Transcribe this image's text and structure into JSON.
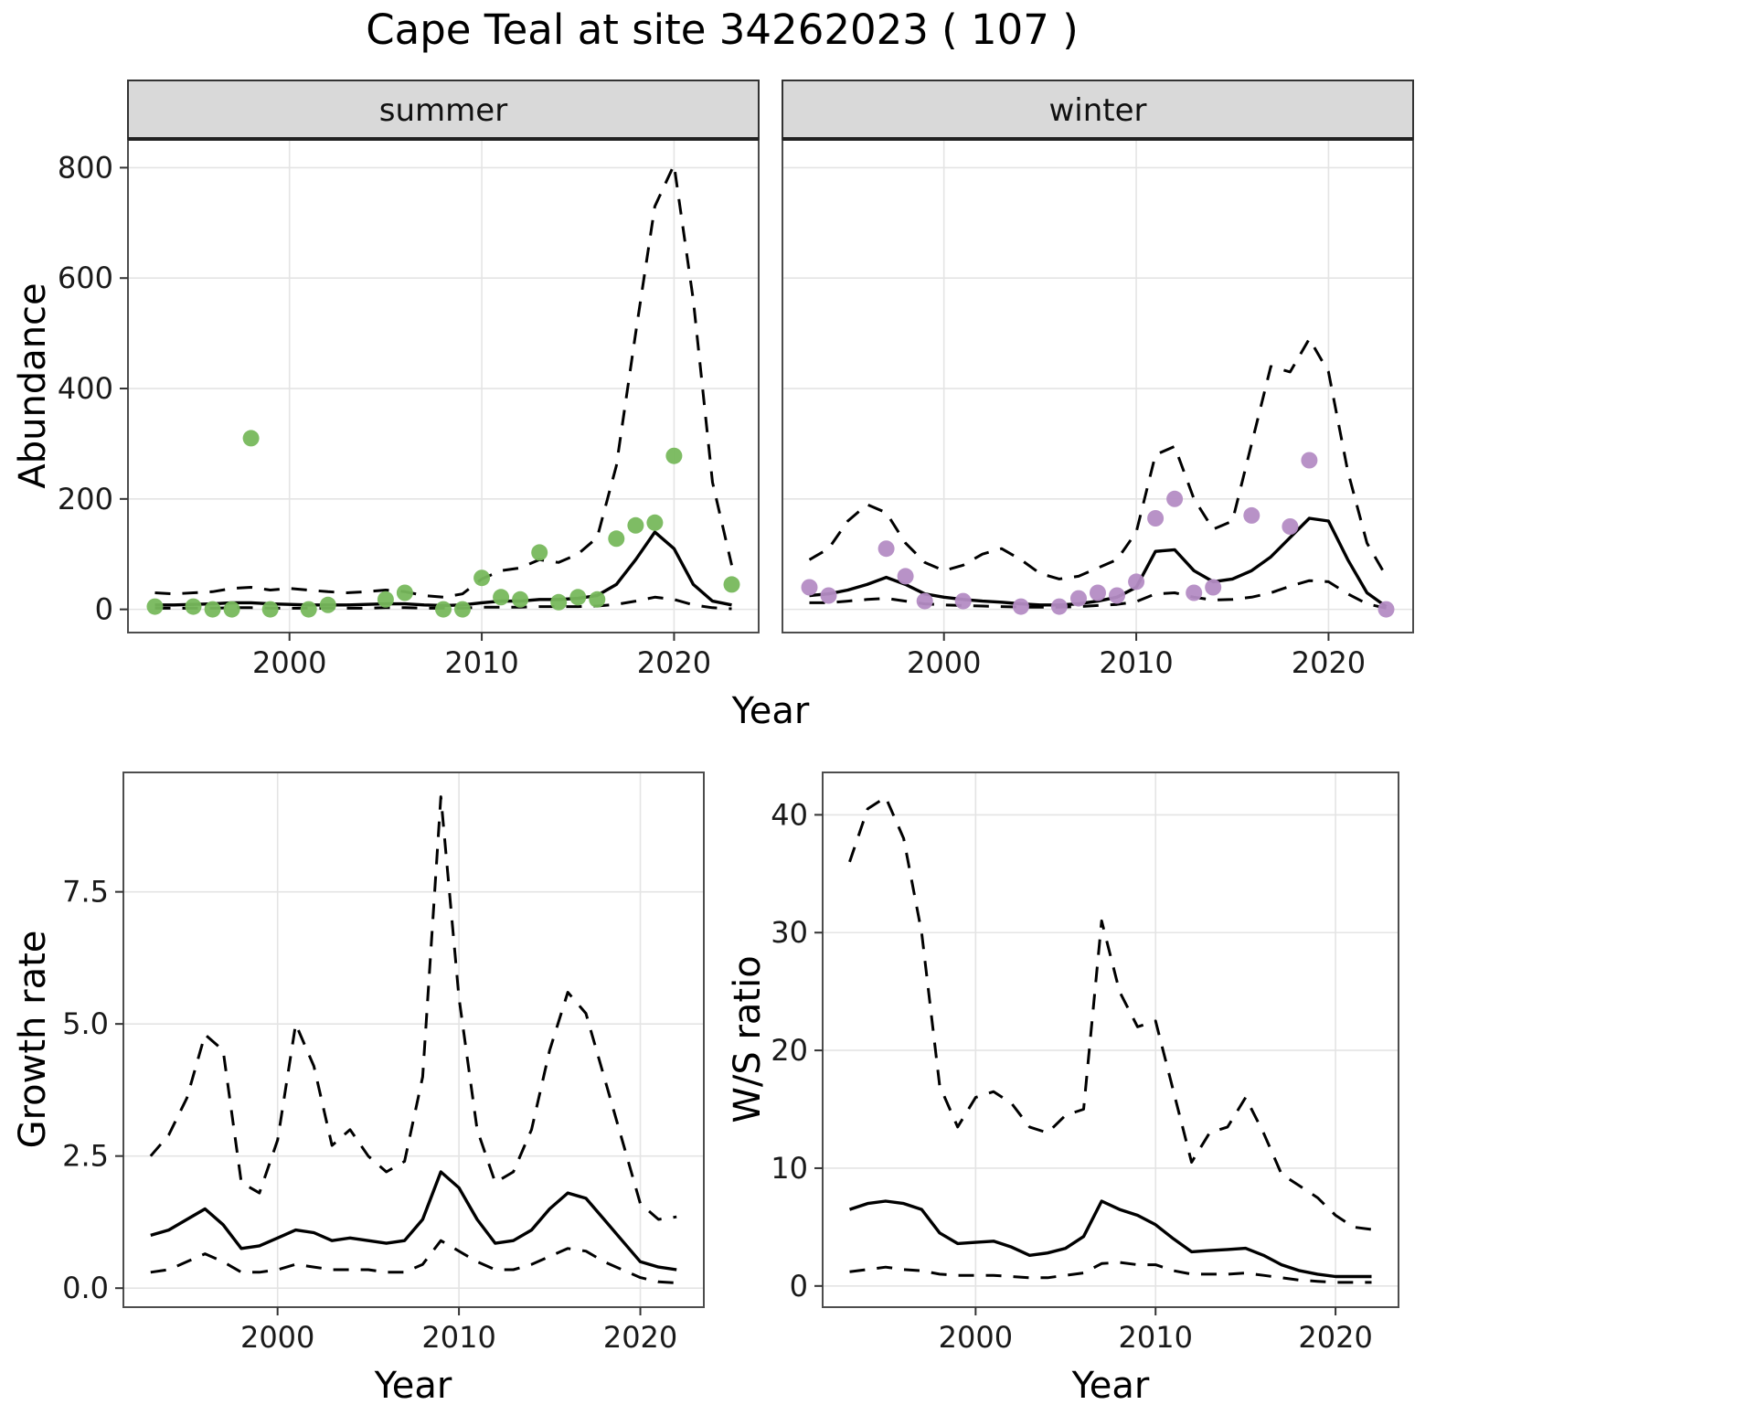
{
  "title": "Cape Teal at site 34262023 ( 107 )",
  "labels": {
    "abundance": "Abundance",
    "year_top": "Year",
    "growth": "Growth rate",
    "ws": "W/S ratio",
    "year_bottom_left": "Year",
    "year_bottom_right": "Year"
  },
  "style": {
    "point_green": "#77b85c",
    "point_purple": "#b48cc4",
    "line_color": "#000000",
    "grid_color": "#e4e4e4",
    "panel_border": "#4d4d4d",
    "strip_fill": "#d9d9d9",
    "strip_border": "#333333",
    "text_color": "#1a1a1a"
  },
  "chart_data": [
    {
      "id": "abundance-summer",
      "type": "line",
      "facet_label": "summer",
      "xlabel": "Year",
      "ylabel": "Abundance",
      "xlim": [
        1991.6,
        2024.4
      ],
      "ylim": [
        -42,
        852
      ],
      "xticks": [
        2000,
        2010,
        2020
      ],
      "xtick_labels": [
        "2000",
        "2010",
        "2020"
      ],
      "yticks": [
        0,
        200,
        400,
        600,
        800
      ],
      "ytick_labels": [
        "0",
        "200",
        "400",
        "600",
        "800"
      ],
      "points": {
        "name": "observed-counts-summer",
        "color_key": "point_green",
        "x": [
          1993,
          1995,
          1996,
          1997,
          1998,
          1999,
          2001,
          2002,
          2005,
          2006,
          2008,
          2009,
          2010,
          2011,
          2012,
          2013,
          2014,
          2015,
          2016,
          2017,
          2018,
          2019,
          2020,
          2023
        ],
        "y": [
          5,
          5,
          0,
          0,
          310,
          0,
          0,
          8,
          18,
          30,
          0,
          0,
          57,
          22,
          18,
          103,
          13,
          22,
          18,
          128,
          152,
          157,
          278,
          45
        ]
      },
      "series": [
        {
          "name": "model-fit",
          "style": "solid",
          "x": [
            1993,
            1994,
            1995,
            1996,
            1997,
            1998,
            1999,
            2000,
            2001,
            2002,
            2003,
            2004,
            2005,
            2006,
            2007,
            2008,
            2009,
            2010,
            2011,
            2012,
            2013,
            2014,
            2015,
            2016,
            2017,
            2018,
            2019,
            2020,
            2021,
            2022,
            2023
          ],
          "y": [
            8,
            8,
            9,
            10,
            12,
            12,
            10,
            9,
            8,
            8,
            8,
            9,
            10,
            10,
            8,
            7,
            8,
            12,
            15,
            15,
            18,
            18,
            20,
            25,
            45,
            90,
            140,
            110,
            45,
            15,
            8
          ]
        },
        {
          "name": "upper-ci",
          "style": "dashed",
          "x": [
            1993,
            1994,
            1995,
            1996,
            1997,
            1998,
            1999,
            2000,
            2001,
            2002,
            2003,
            2004,
            2005,
            2006,
            2007,
            2008,
            2009,
            2010,
            2011,
            2012,
            2013,
            2014,
            2015,
            2016,
            2017,
            2018,
            2019,
            2020,
            2021,
            2022,
            2023
          ],
          "y": [
            30,
            28,
            30,
            32,
            38,
            40,
            35,
            38,
            35,
            32,
            30,
            32,
            35,
            32,
            25,
            22,
            28,
            55,
            70,
            75,
            90,
            85,
            100,
            130,
            260,
            500,
            730,
            805,
            560,
            230,
            80
          ]
        },
        {
          "name": "lower-ci",
          "style": "dashed",
          "x": [
            1993,
            1994,
            1995,
            1996,
            1997,
            1998,
            1999,
            2000,
            2001,
            2002,
            2003,
            2004,
            2005,
            2006,
            2007,
            2008,
            2009,
            2010,
            2011,
            2012,
            2013,
            2014,
            2015,
            2016,
            2017,
            2018,
            2019,
            2020,
            2021,
            2022,
            2023
          ],
          "y": [
            2,
            2,
            2,
            2,
            3,
            3,
            2,
            2,
            2,
            2,
            2,
            2,
            3,
            3,
            2,
            2,
            2,
            4,
            4,
            4,
            5,
            5,
            5,
            6,
            9,
            15,
            22,
            18,
            8,
            3,
            1
          ]
        }
      ]
    },
    {
      "id": "abundance-winter",
      "type": "line",
      "facet_label": "winter",
      "xlabel": "Year",
      "ylabel": "Abundance",
      "xlim": [
        1991.6,
        2024.4
      ],
      "ylim": [
        -42,
        852
      ],
      "xticks": [
        2000,
        2010,
        2020
      ],
      "xtick_labels": [
        "2000",
        "2010",
        "2020"
      ],
      "yticks": [
        0,
        200,
        400,
        600,
        800
      ],
      "ytick_labels": [
        "0",
        "200",
        "400",
        "600",
        "800"
      ],
      "points": {
        "name": "observed-counts-winter",
        "color_key": "point_purple",
        "x": [
          1993,
          1994,
          1997,
          1998,
          1999,
          2001,
          2004,
          2006,
          2007,
          2008,
          2009,
          2010,
          2011,
          2012,
          2013,
          2014,
          2016,
          2018,
          2019,
          2023
        ],
        "y": [
          40,
          25,
          110,
          60,
          15,
          15,
          5,
          5,
          20,
          30,
          25,
          50,
          165,
          200,
          30,
          40,
          170,
          150,
          270,
          0
        ]
      },
      "series": [
        {
          "name": "model-fit",
          "style": "solid",
          "x": [
            1993,
            1994,
            1995,
            1996,
            1997,
            1998,
            1999,
            2000,
            2001,
            2002,
            2003,
            2004,
            2005,
            2006,
            2007,
            2008,
            2009,
            2010,
            2011,
            2012,
            2013,
            2014,
            2015,
            2016,
            2017,
            2018,
            2019,
            2020,
            2021,
            2022,
            2023
          ],
          "y": [
            25,
            28,
            35,
            45,
            58,
            45,
            28,
            22,
            18,
            15,
            13,
            10,
            8,
            8,
            10,
            15,
            22,
            40,
            105,
            108,
            70,
            50,
            55,
            70,
            95,
            130,
            165,
            160,
            90,
            30,
            5
          ]
        },
        {
          "name": "upper-ci",
          "style": "dashed",
          "x": [
            1993,
            1994,
            1995,
            1996,
            1997,
            1998,
            1999,
            2000,
            2001,
            2002,
            2003,
            2004,
            2005,
            2006,
            2007,
            2008,
            2009,
            2010,
            2011,
            2012,
            2013,
            2014,
            2015,
            2016,
            2017,
            2018,
            2019,
            2020,
            2021,
            2022,
            2023
          ],
          "y": [
            90,
            110,
            160,
            190,
            175,
            120,
            85,
            70,
            80,
            100,
            110,
            90,
            65,
            55,
            60,
            75,
            90,
            140,
            280,
            295,
            200,
            145,
            160,
            300,
            440,
            430,
            490,
            430,
            250,
            120,
            60
          ]
        },
        {
          "name": "lower-ci",
          "style": "dashed",
          "x": [
            1993,
            1994,
            1995,
            1996,
            1997,
            1998,
            1999,
            2000,
            2001,
            2002,
            2003,
            2004,
            2005,
            2006,
            2007,
            2008,
            2009,
            2010,
            2011,
            2012,
            2013,
            2014,
            2015,
            2016,
            2017,
            2018,
            2019,
            2020,
            2021,
            2022,
            2023
          ],
          "y": [
            12,
            12,
            15,
            18,
            20,
            15,
            10,
            8,
            7,
            6,
            5,
            4,
            4,
            4,
            5,
            7,
            9,
            14,
            28,
            30,
            22,
            17,
            18,
            22,
            30,
            42,
            52,
            50,
            28,
            10,
            2
          ]
        }
      ]
    },
    {
      "id": "growth-rate",
      "type": "line",
      "facet_label": null,
      "xlabel": "Year",
      "ylabel": "Growth rate",
      "xlim": [
        1991.5,
        2023.5
      ],
      "ylim": [
        -0.36,
        9.76
      ],
      "xticks": [
        2000,
        2010,
        2020
      ],
      "xtick_labels": [
        "2000",
        "2010",
        "2020"
      ],
      "yticks": [
        0,
        2.5,
        5,
        7.5
      ],
      "ytick_labels": [
        "0.0",
        "2.5",
        "5.0",
        "7.5"
      ],
      "points": null,
      "series": [
        {
          "name": "model-fit",
          "style": "solid",
          "x": [
            1993,
            1994,
            1995,
            1996,
            1997,
            1998,
            1999,
            2000,
            2001,
            2002,
            2003,
            2004,
            2005,
            2006,
            2007,
            2008,
            2009,
            2010,
            2011,
            2012,
            2013,
            2014,
            2015,
            2016,
            2017,
            2018,
            2019,
            2020,
            2021,
            2022
          ],
          "y": [
            1.0,
            1.1,
            1.3,
            1.5,
            1.2,
            0.75,
            0.8,
            0.95,
            1.1,
            1.05,
            0.9,
            0.95,
            0.9,
            0.85,
            0.9,
            1.3,
            2.2,
            1.9,
            1.3,
            0.85,
            0.9,
            1.1,
            1.5,
            1.8,
            1.7,
            1.3,
            0.9,
            0.5,
            0.4,
            0.35
          ]
        },
        {
          "name": "upper-ci",
          "style": "dashed",
          "x": [
            1993,
            1994,
            1995,
            1996,
            1997,
            1998,
            1999,
            2000,
            2001,
            2002,
            2003,
            2004,
            2005,
            2006,
            2007,
            2008,
            2009,
            2010,
            2011,
            2012,
            2013,
            2014,
            2015,
            2016,
            2017,
            2018,
            2019,
            2020,
            2021,
            2022
          ],
          "y": [
            2.5,
            2.9,
            3.6,
            4.8,
            4.5,
            2.0,
            1.8,
            2.8,
            5.0,
            4.2,
            2.7,
            3.0,
            2.5,
            2.2,
            2.4,
            4.0,
            9.3,
            5.5,
            3.0,
            2.0,
            2.2,
            3.0,
            4.5,
            5.6,
            5.2,
            4.0,
            2.8,
            1.6,
            1.3,
            1.35
          ]
        },
        {
          "name": "lower-ci",
          "style": "dashed",
          "x": [
            1993,
            1994,
            1995,
            1996,
            1997,
            1998,
            1999,
            2000,
            2001,
            2002,
            2003,
            2004,
            2005,
            2006,
            2007,
            2008,
            2009,
            2010,
            2011,
            2012,
            2013,
            2014,
            2015,
            2016,
            2017,
            2018,
            2019,
            2020,
            2021,
            2022
          ],
          "y": [
            0.3,
            0.35,
            0.5,
            0.65,
            0.5,
            0.3,
            0.3,
            0.35,
            0.45,
            0.4,
            0.35,
            0.35,
            0.35,
            0.3,
            0.3,
            0.45,
            0.9,
            0.7,
            0.5,
            0.35,
            0.35,
            0.45,
            0.6,
            0.75,
            0.7,
            0.5,
            0.35,
            0.2,
            0.12,
            0.1
          ]
        }
      ]
    },
    {
      "id": "ws-ratio",
      "type": "line",
      "facet_label": null,
      "xlabel": "Year",
      "ylabel": "W/S ratio",
      "xlim": [
        1991.5,
        2023.5
      ],
      "ylim": [
        -1.8,
        43.6
      ],
      "xticks": [
        2000,
        2010,
        2020
      ],
      "xtick_labels": [
        "2000",
        "2010",
        "2020"
      ],
      "yticks": [
        0,
        10,
        20,
        30,
        40
      ],
      "ytick_labels": [
        "0",
        "10",
        "20",
        "30",
        "40"
      ],
      "points": null,
      "series": [
        {
          "name": "model-fit",
          "style": "solid",
          "x": [
            1993,
            1994,
            1995,
            1996,
            1997,
            1998,
            1999,
            2000,
            2001,
            2002,
            2003,
            2004,
            2005,
            2006,
            2007,
            2008,
            2009,
            2010,
            2011,
            2012,
            2013,
            2014,
            2015,
            2016,
            2017,
            2018,
            2019,
            2020,
            2021,
            2022
          ],
          "y": [
            6.5,
            7.0,
            7.2,
            7.0,
            6.5,
            4.5,
            3.6,
            3.7,
            3.8,
            3.3,
            2.6,
            2.8,
            3.2,
            4.2,
            7.2,
            6.5,
            6.0,
            5.2,
            4.0,
            2.9,
            3.0,
            3.1,
            3.2,
            2.6,
            1.8,
            1.3,
            1.0,
            0.8,
            0.8,
            0.8
          ]
        },
        {
          "name": "upper-ci",
          "style": "dashed",
          "x": [
            1993,
            1994,
            1995,
            1996,
            1997,
            1998,
            1999,
            2000,
            2001,
            2002,
            2003,
            2004,
            2005,
            2006,
            2007,
            2008,
            2009,
            2010,
            2011,
            2012,
            2013,
            2014,
            2015,
            2016,
            2017,
            2018,
            2019,
            2020,
            2021,
            2022
          ],
          "y": [
            36,
            40.5,
            41.5,
            38,
            30,
            17,
            13.5,
            16,
            16.5,
            15.5,
            13.5,
            13,
            14.5,
            15,
            31,
            25,
            22,
            22.5,
            16.5,
            10.5,
            13,
            13.5,
            16,
            13,
            9.5,
            8.5,
            7.5,
            6,
            5,
            4.8
          ]
        },
        {
          "name": "lower-ci",
          "style": "dashed",
          "x": [
            1993,
            1994,
            1995,
            1996,
            1997,
            1998,
            1999,
            2000,
            2001,
            2002,
            2003,
            2004,
            2005,
            2006,
            2007,
            2008,
            2009,
            2010,
            2011,
            2012,
            2013,
            2014,
            2015,
            2016,
            2017,
            2018,
            2019,
            2020,
            2021,
            2022
          ],
          "y": [
            1.2,
            1.4,
            1.6,
            1.4,
            1.3,
            1.0,
            0.9,
            0.9,
            0.9,
            0.8,
            0.7,
            0.7,
            0.9,
            1.1,
            1.9,
            2.0,
            1.8,
            1.8,
            1.3,
            1.0,
            1.0,
            1.0,
            1.1,
            0.9,
            0.7,
            0.5,
            0.4,
            0.3,
            0.3,
            0.3
          ]
        }
      ]
    }
  ]
}
